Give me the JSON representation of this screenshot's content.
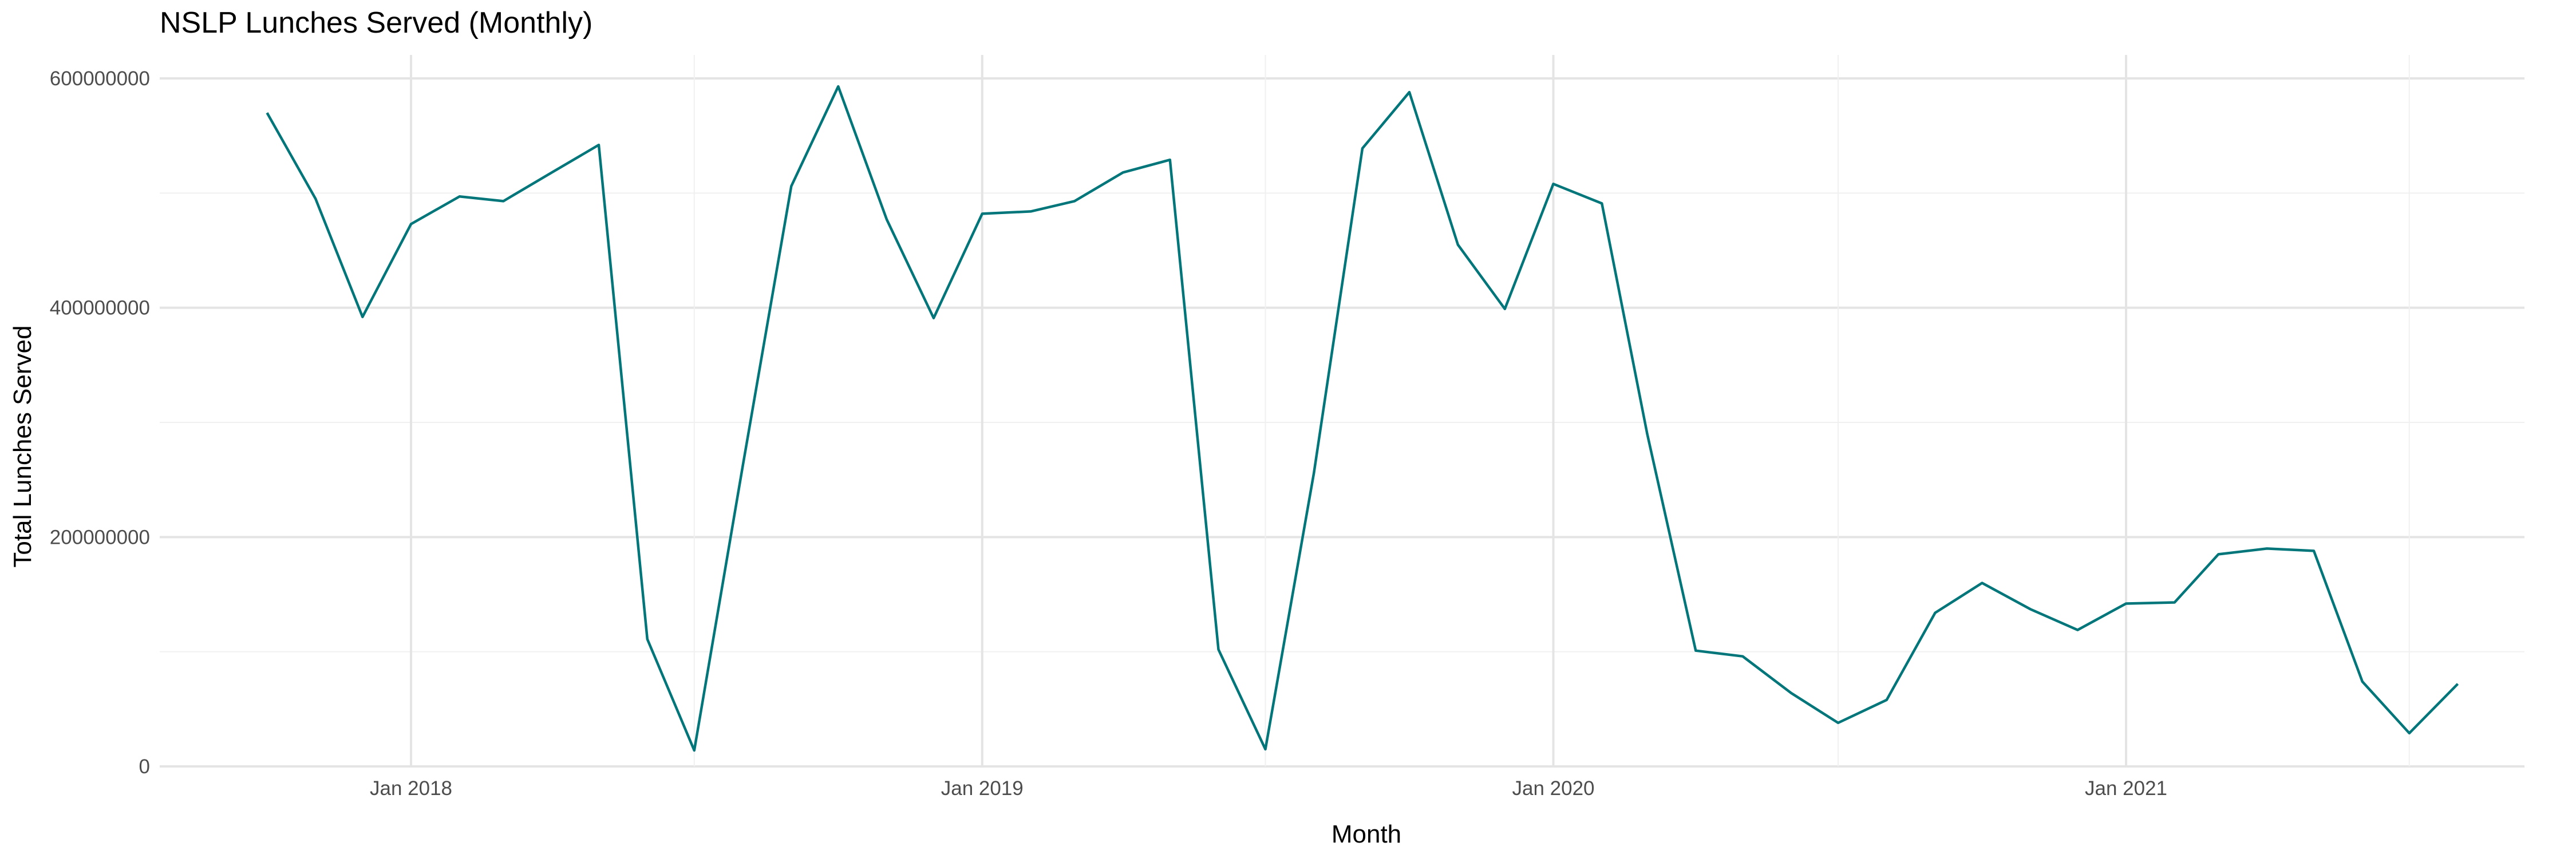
{
  "chart_data": {
    "type": "line",
    "title": "NSLP Lunches Served (Monthly)",
    "xlabel": "Month",
    "ylabel": "Total Lunches Served",
    "ylim": [
      0,
      600000000
    ],
    "xlim": [
      "2017-08-01",
      "2021-10-01"
    ],
    "grid": true,
    "legend": "none",
    "line_color": "#00767A",
    "y_ticks": [
      0,
      200000000,
      400000000,
      600000000
    ],
    "y_tick_labels": [
      "0",
      "200000000",
      "400000000",
      "600000000"
    ],
    "x_ticks": [
      "2018-01-01",
      "2019-01-01",
      "2020-01-01",
      "2021-01-01"
    ],
    "x_tick_labels": [
      "Jan 2018",
      "Jan 2019",
      "Jan 2020",
      "Jan 2021"
    ],
    "series": [
      {
        "x": [
          "2017-10-01",
          "2017-11-01",
          "2017-12-01",
          "2018-01-01",
          "2018-02-01",
          "2018-03-01",
          "2018-04-01",
          "2018-05-01",
          "2018-06-01",
          "2018-07-01",
          "2018-08-01",
          "2018-09-01",
          "2018-10-01",
          "2018-11-01",
          "2018-12-01",
          "2019-01-01",
          "2019-02-01",
          "2019-03-01",
          "2019-04-01",
          "2019-05-01",
          "2019-06-01",
          "2019-07-01",
          "2019-08-01",
          "2019-09-01",
          "2019-10-01",
          "2019-11-01",
          "2019-12-01",
          "2020-01-01",
          "2020-02-01",
          "2020-03-01",
          "2020-04-01",
          "2020-05-01",
          "2020-06-01",
          "2020-07-01",
          "2020-08-01",
          "2020-09-01",
          "2020-10-01",
          "2020-11-01",
          "2020-12-01",
          "2021-01-01",
          "2021-02-01",
          "2021-03-01",
          "2021-04-01",
          "2021-05-01",
          "2021-06-01",
          "2021-07-01",
          "2021-08-01"
        ],
        "values": [
          570000000,
          495000000,
          392000000,
          473000000,
          497000000,
          493000000,
          518000000,
          542000000,
          111000000,
          14000000,
          262000000,
          506000000,
          593000000,
          477000000,
          391000000,
          482000000,
          484000000,
          493000000,
          518000000,
          529000000,
          102000000,
          15000000,
          256000000,
          539000000,
          588000000,
          455000000,
          399000000,
          508000000,
          491000000,
          290000000,
          101000000,
          96000000,
          64000000,
          38000000,
          58000000,
          134000000,
          160000000,
          137000000,
          119000000,
          142000000,
          143000000,
          185000000,
          190000000,
          188000000,
          74000000,
          29000000,
          72000000
        ]
      }
    ]
  }
}
